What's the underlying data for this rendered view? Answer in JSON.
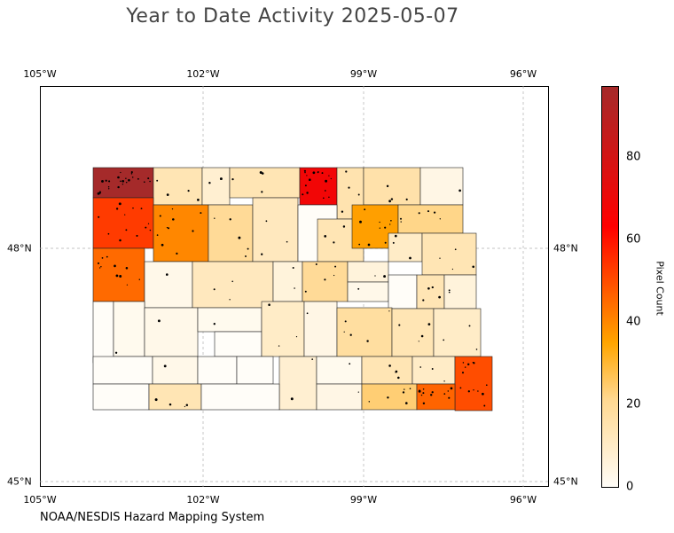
{
  "title": "Year to Date Activity 2025-05-07",
  "footer": "NOAA/NESDIS Hazard Mapping System",
  "axes": {
    "lon_ticks": [
      "105°W",
      "102°W",
      "99°W",
      "96°W"
    ],
    "lat_ticks": [
      "48°N",
      "45°N"
    ],
    "lon_range": [
      -105,
      -95.5
    ],
    "lat_range": [
      44.9,
      50.0
    ]
  },
  "colorbar": {
    "label": "Pixel Count",
    "ticks": [
      "0",
      "20",
      "40",
      "60",
      "80"
    ],
    "range": [
      0,
      97
    ],
    "colors": [
      "#fffdf8",
      "#ffd890",
      "#ffa500",
      "#ff0000",
      "#a52a2a"
    ]
  },
  "chart_data": {
    "type": "heatmap",
    "region": "North Dakota counties",
    "value_name": "Pixel Count",
    "grid": true,
    "counties": [
      {
        "id": "divide",
        "value": 97
      },
      {
        "id": "burke",
        "value": 14
      },
      {
        "id": "renville",
        "value": 8
      },
      {
        "id": "bottineau",
        "value": 14
      },
      {
        "id": "rolette",
        "value": 68
      },
      {
        "id": "towner",
        "value": 15
      },
      {
        "id": "cavalier",
        "value": 16
      },
      {
        "id": "pembina",
        "value": 4
      },
      {
        "id": "williams",
        "value": 53
      },
      {
        "id": "mountrail",
        "value": 40
      },
      {
        "id": "ward",
        "value": 20
      },
      {
        "id": "mchenry",
        "value": 12
      },
      {
        "id": "pierce",
        "value": 0
      },
      {
        "id": "benson",
        "value": 14
      },
      {
        "id": "ramsey",
        "value": 36
      },
      {
        "id": "walsh",
        "value": 22
      },
      {
        "id": "nelson",
        "value": 10
      },
      {
        "id": "grand-forks",
        "value": 14
      },
      {
        "id": "mckenzie",
        "value": 45
      },
      {
        "id": "dunn",
        "value": 3
      },
      {
        "id": "mclean",
        "value": 12
      },
      {
        "id": "sheridan",
        "value": 6
      },
      {
        "id": "wells",
        "value": 20
      },
      {
        "id": "eddy",
        "value": 6
      },
      {
        "id": "foster",
        "value": 3
      },
      {
        "id": "griggs",
        "value": 0
      },
      {
        "id": "steele",
        "value": 14
      },
      {
        "id": "traill",
        "value": 6
      },
      {
        "id": "golden-valley",
        "value": 0
      },
      {
        "id": "billings",
        "value": 2
      },
      {
        "id": "stark",
        "value": 3
      },
      {
        "id": "mercer",
        "value": 2
      },
      {
        "id": "oliver",
        "value": 0
      },
      {
        "id": "burleigh",
        "value": 10
      },
      {
        "id": "kidder",
        "value": 4
      },
      {
        "id": "stutsman",
        "value": 18
      },
      {
        "id": "barnes",
        "value": 14
      },
      {
        "id": "cass",
        "value": 10
      },
      {
        "id": "slope",
        "value": 0
      },
      {
        "id": "hettinger",
        "value": 3
      },
      {
        "id": "grant",
        "value": 0
      },
      {
        "id": "morton",
        "value": 0
      },
      {
        "id": "emmons",
        "value": 8
      },
      {
        "id": "logan",
        "value": 2
      },
      {
        "id": "lamoure",
        "value": 14
      },
      {
        "id": "ransom",
        "value": 10
      },
      {
        "id": "richland",
        "value": 50
      },
      {
        "id": "bowman",
        "value": 0
      },
      {
        "id": "adams",
        "value": 14
      },
      {
        "id": "sioux",
        "value": 0
      },
      {
        "id": "mcintosh",
        "value": 4
      },
      {
        "id": "dickey",
        "value": 24
      },
      {
        "id": "sargent",
        "value": 46
      }
    ]
  }
}
